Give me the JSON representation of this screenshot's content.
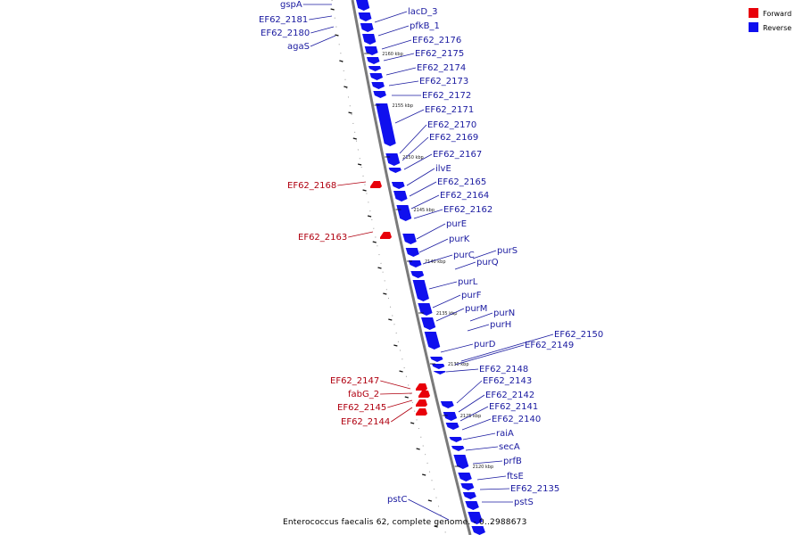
{
  "colors": {
    "forward": "#e8000a",
    "reverse": "#1010ee",
    "forward_label": "#b00010",
    "reverse_label": "#1a1aa0",
    "backbone": "#888888"
  },
  "legend": [
    {
      "label": "Forward",
      "color": "#e8000a"
    },
    {
      "label": "Reverse",
      "color": "#1010ee"
    }
  ],
  "caption": "Enterococcus faecalis 62, complete genome. - 0..2988673",
  "ticks": [
    "2160 kbp",
    "2155 kbp",
    "2150 kbp",
    "2145 kbp",
    "2140 kbp",
    "2135 kbp",
    "2130 kbp",
    "2125 kbp",
    "2120 kbp"
  ],
  "reverse_genes": [
    "gspA",
    "EF62_2181",
    "EF62_2180",
    "agaS",
    "lacD_3",
    "pfkB_1",
    "EF62_2176",
    "EF62_2175",
    "EF62_2174",
    "EF62_2173",
    "EF62_2172",
    "EF62_2171",
    "EF62_2170",
    "EF62_2169",
    "EF62_2167",
    "ilvE",
    "EF62_2165",
    "EF62_2164",
    "EF62_2162",
    "purE",
    "purK",
    "purC",
    "purS",
    "purQ",
    "purL",
    "purF",
    "purM",
    "purN",
    "purH",
    "purD",
    "EF62_2150",
    "EF62_2149",
    "EF62_2148",
    "EF62_2143",
    "EF62_2142",
    "EF62_2141",
    "EF62_2140",
    "raiA",
    "secA",
    "prfB",
    "ftsE",
    "EF62_2135",
    "pstS",
    "pstC"
  ],
  "forward_genes": [
    "EF62_2168",
    "EF62_2163",
    "EF62_2147",
    "fabG_2",
    "EF62_2145",
    "EF62_2144"
  ]
}
